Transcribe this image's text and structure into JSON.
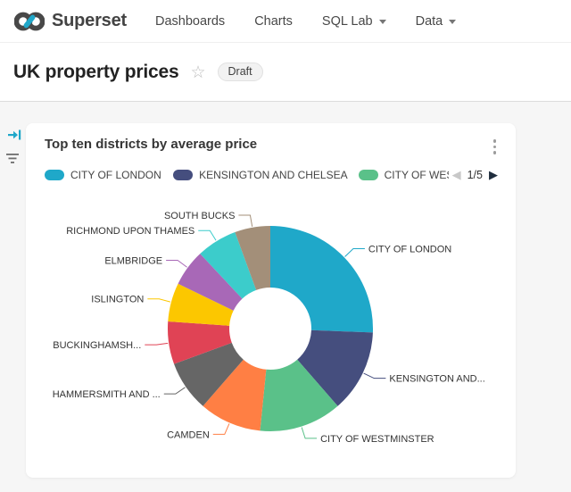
{
  "header": {
    "brand": "Superset",
    "nav": [
      {
        "label": "Dashboards",
        "caret": false
      },
      {
        "label": "Charts",
        "caret": false
      },
      {
        "label": "SQL Lab",
        "caret": true
      },
      {
        "label": "Data",
        "caret": true
      }
    ]
  },
  "page": {
    "title": "UK property prices",
    "status_badge": "Draft"
  },
  "icons": {
    "star": "☆",
    "legend_prev": "◀",
    "legend_next": "▶",
    "rail_expand": "expand-filter-bar-arrow",
    "rail_filter": "filter-funnel"
  },
  "colors": {
    "accent": "#20A7C9",
    "pager_prev": "#c8c8c8",
    "pager_next": "#1f2d3d"
  },
  "card": {
    "title": "Top ten districts by average price",
    "legend": {
      "items": [
        {
          "label": "CITY OF LONDON",
          "color": "#1FA8C9"
        },
        {
          "label": "KENSINGTON AND CHELSEA",
          "color": "#454E7E"
        },
        {
          "label": "CITY OF WES",
          "color": "#5AC189"
        }
      ],
      "page_indicator": "1/5"
    }
  },
  "chart_data": {
    "type": "pie",
    "donut": true,
    "title": "Top ten districts by average price",
    "legend_position": "top",
    "start_angle": "12-oclock-clockwise",
    "inner_radius_ratio": 0.4,
    "unit": "percent",
    "slices": [
      {
        "label": "CITY OF LONDON",
        "value": 25.6,
        "color": "#1FA8C9"
      },
      {
        "label": "KENSINGTON AND...",
        "value": 13.0,
        "color": "#454E7E"
      },
      {
        "label": "CITY OF WESTMINSTER",
        "value": 13.0,
        "color": "#5AC189"
      },
      {
        "label": "CAMDEN",
        "value": 9.8,
        "color": "#FF7F44"
      },
      {
        "label": "HAMMERSMITH AND ...",
        "value": 8.0,
        "color": "#666666"
      },
      {
        "label": "BUCKINGHAMSH...",
        "value": 6.7,
        "color": "#E04355"
      },
      {
        "label": "ISLINGTON",
        "value": 6.1,
        "color": "#FCC700"
      },
      {
        "label": "ELMBRIDGE",
        "value": 5.8,
        "color": "#A868B7"
      },
      {
        "label": "RICHMOND UPON THAMES",
        "value": 6.4,
        "color": "#3CCCCB"
      },
      {
        "label": "SOUTH BUCKS",
        "value": 5.6,
        "color": "#A38F79"
      }
    ]
  }
}
